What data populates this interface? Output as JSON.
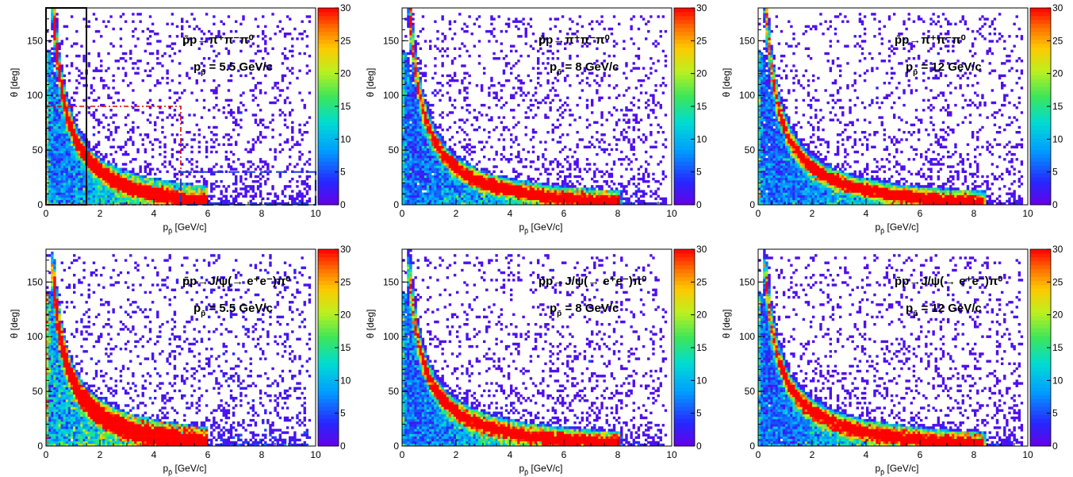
{
  "chart_data": [
    {
      "type": "heatmap",
      "reaction": "p̄p→π⁺π⁻π⁰",
      "momentum": "= 5.5 GeV/c",
      "p_beam": 5.5,
      "xlabel": "p",
      "xlabel_sub": "p̄",
      "xlabel_unit": " [GeV/c]",
      "ylabel": "θ [deg]",
      "xlim": [
        0,
        10
      ],
      "ylim": [
        0,
        180
      ],
      "x_ticks": [
        0,
        2,
        4,
        6,
        8,
        10
      ],
      "y_ticks": [
        0,
        50,
        100,
        150
      ],
      "colorbar": {
        "range": [
          0,
          30
        ],
        "ticks": [
          0,
          5,
          10,
          15,
          20,
          25,
          30
        ]
      },
      "features": [
        "band from (0.4,145) decaying to (6,0)",
        "scattered points at high p"
      ],
      "cut_regions": [
        {
          "style": "solid-black",
          "x": [
            0,
            1.5
          ],
          "y": [
            0,
            180
          ]
        },
        {
          "style": "dash-dot-red",
          "x": [
            0,
            5
          ],
          "y": [
            0,
            90
          ]
        },
        {
          "style": "dashed-blue",
          "x": [
            5,
            10
          ],
          "y": [
            0,
            30
          ]
        }
      ]
    },
    {
      "type": "heatmap",
      "reaction": "p̄p→π⁺π⁻π⁰",
      "momentum": "= 8 GeV/c",
      "p_beam": 8,
      "xlabel": "p",
      "xlabel_sub": "p̄",
      "xlabel_unit": " [GeV/c]",
      "ylabel": "θ [deg]",
      "xlim": [
        0,
        10
      ],
      "ylim": [
        0,
        180
      ],
      "x_ticks": [
        0,
        2,
        4,
        6,
        8,
        10
      ],
      "y_ticks": [
        0,
        50,
        100,
        150
      ],
      "colorbar": {
        "range": [
          0,
          30
        ],
        "ticks": [
          0,
          5,
          10,
          15,
          20,
          25,
          30
        ]
      }
    },
    {
      "type": "heatmap",
      "reaction": "p̄p→π⁺π⁻π⁰",
      "momentum": "= 12 GeV/c",
      "p_beam": 12,
      "xlabel": "p",
      "xlabel_sub": "p̄",
      "xlabel_unit": " [GeV/c]",
      "ylabel": "θ [deg]",
      "xlim": [
        0,
        10
      ],
      "ylim": [
        0,
        180
      ],
      "x_ticks": [
        0,
        2,
        4,
        6,
        8,
        10
      ],
      "y_ticks": [
        0,
        50,
        100,
        150
      ],
      "colorbar": {
        "range": [
          0,
          30
        ],
        "ticks": [
          0,
          5,
          10,
          15,
          20,
          25,
          30
        ]
      }
    },
    {
      "type": "heatmap",
      "reaction": "p̄p→J/ψ(→ e⁺e⁻)π⁰",
      "momentum": "= 5.5 GeV/c",
      "p_beam": 5.5,
      "xlabel": "p",
      "xlabel_sub": "p̄",
      "xlabel_unit": " [GeV/c]",
      "ylabel": "θ [deg]",
      "xlim": [
        0,
        10
      ],
      "ylim": [
        0,
        180
      ],
      "x_ticks": [
        0,
        2,
        4,
        6,
        8,
        10
      ],
      "y_ticks": [
        0,
        50,
        100,
        150
      ],
      "colorbar": {
        "range": [
          0,
          30
        ],
        "ticks": [
          0,
          5,
          10,
          15,
          20,
          25,
          30
        ]
      }
    },
    {
      "type": "heatmap",
      "reaction": "p̄p→J/ψ(→ e⁺e⁻)π⁰",
      "momentum": "= 8 GeV/c",
      "p_beam": 8,
      "xlabel": "p",
      "xlabel_sub": "p̄",
      "xlabel_unit": " [GeV/c]",
      "ylabel": "θ [deg]",
      "xlim": [
        0,
        10
      ],
      "ylim": [
        0,
        180
      ],
      "x_ticks": [
        0,
        2,
        4,
        6,
        8,
        10
      ],
      "y_ticks": [
        0,
        50,
        100,
        150
      ],
      "colorbar": {
        "range": [
          0,
          30
        ],
        "ticks": [
          0,
          5,
          10,
          15,
          20,
          25,
          30
        ]
      }
    },
    {
      "type": "heatmap",
      "reaction": "p̄p→J/ψ(→ e⁺e⁻)π⁰",
      "momentum": "= 12 GeV/c",
      "p_beam": 12,
      "xlabel": "p",
      "xlabel_sub": "p̄",
      "xlabel_unit": " [GeV/c]",
      "ylabel": "θ [deg]",
      "xlim": [
        0,
        10
      ],
      "ylim": [
        0,
        180
      ],
      "x_ticks": [
        0,
        2,
        4,
        6,
        8,
        10
      ],
      "y_ticks": [
        0,
        50,
        100,
        150
      ],
      "colorbar": {
        "range": [
          0,
          30
        ],
        "ticks": [
          0,
          5,
          10,
          15,
          20,
          25,
          30
        ]
      }
    }
  ]
}
